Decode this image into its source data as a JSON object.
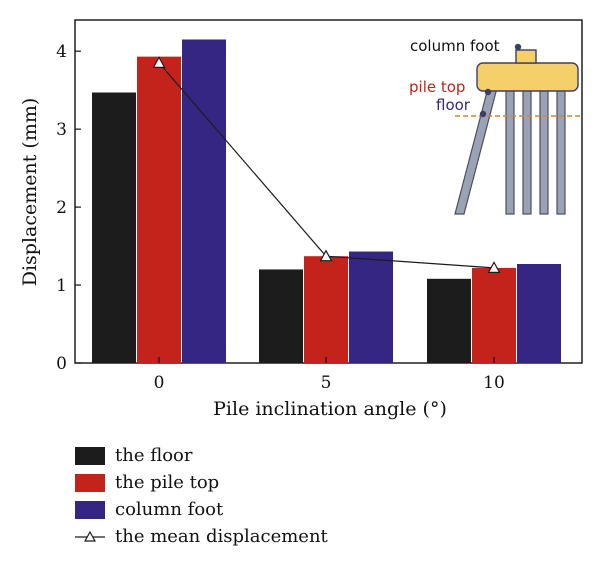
{
  "chart_data": {
    "type": "bar",
    "categories": [
      "0",
      "5",
      "10"
    ],
    "series": [
      {
        "name": "the floor",
        "values": [
          3.47,
          1.2,
          1.08
        ],
        "color": "#1c1c1c"
      },
      {
        "name": "the pile top",
        "values": [
          3.93,
          1.37,
          1.22
        ],
        "color": "#c4231b"
      },
      {
        "name": "column foot",
        "values": [
          4.15,
          1.43,
          1.27
        ],
        "color": "#362683"
      }
    ],
    "line_series": {
      "name": "the mean displacement",
      "values": [
        3.85,
        1.37,
        1.22
      ],
      "marker": "open-triangle",
      "color": "#1c1c1c"
    },
    "xlabel": "Pile inclination angle (°)",
    "ylabel": "Displacement (mm)",
    "ylim": [
      0,
      4.4
    ],
    "yticks": [
      "0",
      "1",
      "2",
      "3",
      "4"
    ],
    "legend_position": "below-left",
    "inset": {
      "column_foot_label": "column foot",
      "pile_top_label": "pile top",
      "floor_label": "floor",
      "column_foot_color": "#111111",
      "pile_top_color": "#c4231b",
      "floor_color": "#362683",
      "cap_color": "#f5cf6a",
      "pile_color": "#9aa3b5",
      "floor_line_color": "#d9822b"
    }
  }
}
